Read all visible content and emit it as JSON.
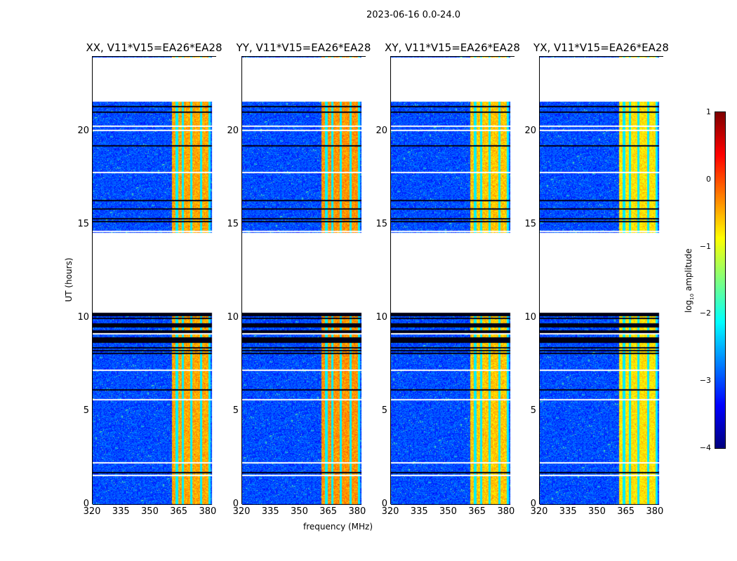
{
  "suptitle": "2023-06-16 0.0-24.0",
  "chart_data": {
    "type": "heatmap",
    "panels": [
      {
        "title": "XX, V11*V15=EA26*EA28",
        "band_level": -0.45
      },
      {
        "title": "YY, V11*V15=EA26*EA28",
        "band_level": -0.35
      },
      {
        "title": "XY, V11*V15=EA26*EA28",
        "band_level": -0.6
      },
      {
        "title": "YX, V11*V15=EA26*EA28",
        "band_level": -0.75
      }
    ],
    "xlabel": "frequency (MHz)",
    "ylabel": "UT (hours)",
    "xlim": [
      320,
      384.4
    ],
    "ylim": [
      0,
      24
    ],
    "xticks": [
      320,
      335,
      350,
      365,
      380
    ],
    "xtick_labels": [
      "320",
      "335",
      "350",
      "365",
      "380"
    ],
    "yticks": [
      0,
      5,
      10,
      15,
      20
    ],
    "ytick_labels": [
      "0",
      "5",
      "10",
      "15",
      "20"
    ],
    "data_gaps_hours": [
      [
        10.3,
        14.6
      ],
      [
        21.6,
        24
      ]
    ],
    "rfi_band_mhz": [
      361,
      381
    ],
    "background_level": -3.0,
    "colorbar": {
      "label": "log10 amplitude",
      "label_main": "log",
      "label_sub": "10",
      "label_rest": " amplitude",
      "range": [
        -4,
        1
      ],
      "ticks": [
        1,
        0,
        -1,
        -2,
        -3,
        -4
      ],
      "tick_labels": [
        "1",
        "0",
        "−1",
        "−2",
        "−3",
        "−4"
      ],
      "colormap": "jet"
    }
  }
}
